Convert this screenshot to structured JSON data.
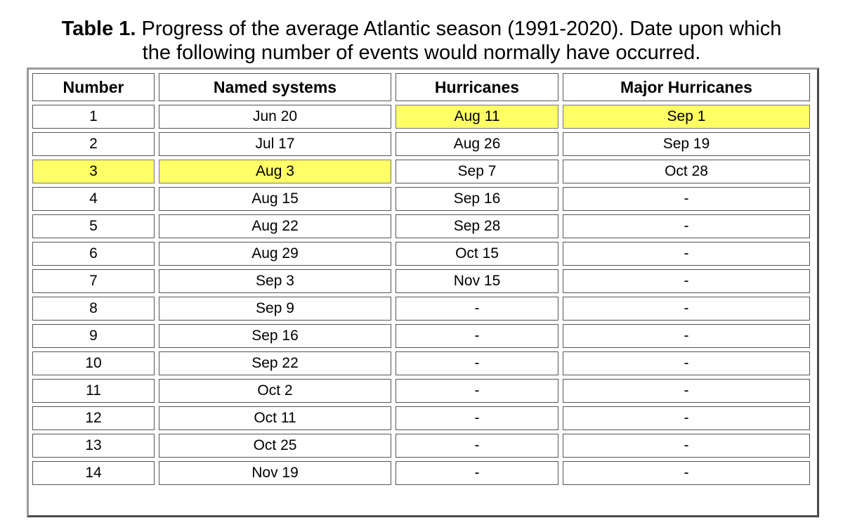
{
  "caption": {
    "lead": "Table 1.",
    "text": "Progress of the average Atlantic season (1991-2020). Date upon which",
    "line2": "the following number of events would normally have occurred."
  },
  "table": {
    "headers": [
      "Number",
      "Named systems",
      "Hurricanes",
      "Major Hurricanes"
    ],
    "rows": [
      [
        "1",
        "Jun 20",
        "Aug 11",
        "Sep 1"
      ],
      [
        "2",
        "Jul 17",
        "Aug 26",
        "Sep 19"
      ],
      [
        "3",
        "Aug 3",
        "Sep 7",
        "Oct 28"
      ],
      [
        "4",
        "Aug 15",
        "Sep 16",
        "-"
      ],
      [
        "5",
        "Aug 22",
        "Sep 28",
        "-"
      ],
      [
        "6",
        "Aug 29",
        "Oct 15",
        "-"
      ],
      [
        "7",
        "Sep 3",
        "Nov 15",
        "-"
      ],
      [
        "8",
        "Sep 9",
        "-",
        "-"
      ],
      [
        "9",
        "Sep 16",
        "-",
        "-"
      ],
      [
        "10",
        "Sep 22",
        "-",
        "-"
      ],
      [
        "11",
        "Oct 2",
        "-",
        "-"
      ],
      [
        "12",
        "Oct 11",
        "-",
        "-"
      ],
      [
        "13",
        "Oct 25",
        "-",
        "-"
      ],
      [
        "14",
        "Nov 19",
        "-",
        "-"
      ]
    ],
    "highlight_color": "#ffff66",
    "highlighted_cells": [
      [
        0,
        2
      ],
      [
        0,
        3
      ],
      [
        2,
        0
      ],
      [
        2,
        1
      ]
    ]
  }
}
